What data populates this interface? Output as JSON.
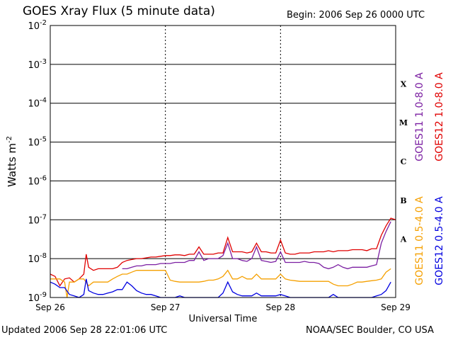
{
  "header": {
    "title": "GOES Xray Flux (5 minute data)",
    "begin": "Begin:  2006 Sep 26 0000 UTC"
  },
  "footer": {
    "updated": "Updated 2006 Sep 28 22:01:06 UTC",
    "credit": "NOAA/SEC Boulder, CO USA"
  },
  "chart_data": {
    "type": "line",
    "title": "GOES Xray Flux (5 minute data)",
    "xlabel": "Universal Time",
    "ylabel": "Watts m-2",
    "ylabel_base": "Watts m",
    "ylabel_exp": "-2",
    "yscale": "log",
    "ylim": [
      1e-09,
      0.01
    ],
    "xlim": [
      0,
      72
    ],
    "x_unit": "hours since 2006 Sep 26 0000 UTC",
    "x_ticks": [
      {
        "x": 0,
        "label": "Sep 26"
      },
      {
        "x": 24,
        "label": "Sep 27"
      },
      {
        "x": 48,
        "label": "Sep 28"
      },
      {
        "x": 72,
        "label": "Sep 29"
      }
    ],
    "y_ticks": [
      {
        "exp": -9,
        "label": "10",
        "sup": "-9"
      },
      {
        "exp": -8,
        "label": "10",
        "sup": "-8"
      },
      {
        "exp": -7,
        "label": "10",
        "sup": "-7"
      },
      {
        "exp": -6,
        "label": "10",
        "sup": "-6"
      },
      {
        "exp": -5,
        "label": "10",
        "sup": "-5"
      },
      {
        "exp": -4,
        "label": "10",
        "sup": "-4"
      },
      {
        "exp": -3,
        "label": "10",
        "sup": "-3"
      },
      {
        "exp": -2,
        "label": "10",
        "sup": "-2"
      }
    ],
    "flare_classes": [
      {
        "label": "A",
        "exp": -8
      },
      {
        "label": "B",
        "exp": -7
      },
      {
        "label": "C",
        "exp": -6
      },
      {
        "label": "M",
        "exp": -5
      },
      {
        "label": "X",
        "exp": -4
      }
    ],
    "grid": true,
    "series": [
      {
        "name": "GOES12 1.0-8.0 A",
        "color": "#e00000",
        "points": [
          [
            0,
            4e-09
          ],
          [
            1,
            3.5e-09
          ],
          [
            2,
            2e-09
          ],
          [
            3,
            3e-09
          ],
          [
            4,
            3.2e-09
          ],
          [
            5,
            2.5e-09
          ],
          [
            6,
            3e-09
          ],
          [
            7,
            4e-09
          ],
          [
            7.5,
            1.3e-08
          ],
          [
            8,
            6e-09
          ],
          [
            9,
            5e-09
          ],
          [
            10,
            5.5e-09
          ],
          [
            11,
            5.5e-09
          ],
          [
            12,
            5.5e-09
          ],
          [
            13,
            5.5e-09
          ],
          [
            14,
            6e-09
          ],
          [
            15,
            8e-09
          ],
          [
            16,
            9e-09
          ],
          [
            17,
            9.5e-09
          ],
          [
            18,
            1e-08
          ],
          [
            19,
            1e-08
          ],
          [
            20,
            1.05e-08
          ],
          [
            21,
            1.1e-08
          ],
          [
            22,
            1.1e-08
          ],
          [
            23,
            1.15e-08
          ],
          [
            24,
            1.2e-08
          ],
          [
            25,
            1.2e-08
          ],
          [
            26,
            1.25e-08
          ],
          [
            27,
            1.25e-08
          ],
          [
            28,
            1.2e-08
          ],
          [
            29,
            1.3e-08
          ],
          [
            30,
            1.3e-08
          ],
          [
            31,
            2e-08
          ],
          [
            32,
            1.3e-08
          ],
          [
            33,
            1.3e-08
          ],
          [
            34,
            1.3e-08
          ],
          [
            35,
            1.4e-08
          ],
          [
            36,
            1.4e-08
          ],
          [
            37,
            3.5e-08
          ],
          [
            38,
            1.5e-08
          ],
          [
            39,
            1.5e-08
          ],
          [
            40,
            1.5e-08
          ],
          [
            41,
            1.4e-08
          ],
          [
            42,
            1.5e-08
          ],
          [
            43,
            2.5e-08
          ],
          [
            44,
            1.5e-08
          ],
          [
            45,
            1.5e-08
          ],
          [
            46,
            1.4e-08
          ],
          [
            47,
            1.4e-08
          ],
          [
            48,
            3e-08
          ],
          [
            49,
            1.4e-08
          ],
          [
            50,
            1.3e-08
          ],
          [
            51,
            1.3e-08
          ],
          [
            52,
            1.4e-08
          ],
          [
            53,
            1.4e-08
          ],
          [
            54,
            1.4e-08
          ],
          [
            55,
            1.5e-08
          ],
          [
            56,
            1.5e-08
          ],
          [
            57,
            1.5e-08
          ],
          [
            58,
            1.6e-08
          ],
          [
            59,
            1.5e-08
          ],
          [
            60,
            1.6e-08
          ],
          [
            61,
            1.6e-08
          ],
          [
            62,
            1.6e-08
          ],
          [
            63,
            1.7e-08
          ],
          [
            64,
            1.7e-08
          ],
          [
            65,
            1.7e-08
          ],
          [
            66,
            1.6e-08
          ],
          [
            67,
            1.8e-08
          ],
          [
            68,
            1.8e-08
          ],
          [
            69,
            4e-08
          ],
          [
            70,
            7e-08
          ],
          [
            71,
            1.1e-07
          ],
          [
            72,
            1e-07
          ]
        ]
      },
      {
        "name": "GOES11 1.0-8.0 A",
        "color": "#7b1fa2",
        "points": [
          [
            15,
            5.5e-09
          ],
          [
            16,
            5.5e-09
          ],
          [
            17,
            6e-09
          ],
          [
            18,
            6.5e-09
          ],
          [
            19,
            6.5e-09
          ],
          [
            20,
            7e-09
          ],
          [
            21,
            7e-09
          ],
          [
            22,
            7e-09
          ],
          [
            23,
            7.5e-09
          ],
          [
            24,
            7.5e-09
          ],
          [
            25,
            7.5e-09
          ],
          [
            26,
            8e-09
          ],
          [
            27,
            8e-09
          ],
          [
            28,
            8e-09
          ],
          [
            29,
            9e-09
          ],
          [
            30,
            9e-09
          ],
          [
            31,
            1.5e-08
          ],
          [
            32,
            9e-09
          ],
          [
            33,
            1e-08
          ],
          [
            34,
            1e-08
          ],
          [
            35,
            1e-08
          ],
          [
            36,
            1.2e-08
          ],
          [
            37,
            2.5e-08
          ],
          [
            38,
            1e-08
          ],
          [
            39,
            1e-08
          ],
          [
            40,
            9e-09
          ],
          [
            41,
            8.5e-09
          ],
          [
            42,
            1e-08
          ],
          [
            43,
            2e-08
          ],
          [
            44,
            9e-09
          ],
          [
            45,
            8.5e-09
          ],
          [
            46,
            8e-09
          ],
          [
            47,
            8.5e-09
          ],
          [
            48,
            1.5e-08
          ],
          [
            49,
            8e-09
          ],
          [
            50,
            8e-09
          ],
          [
            51,
            8e-09
          ],
          [
            52,
            8e-09
          ],
          [
            53,
            8.5e-09
          ],
          [
            54,
            8e-09
          ],
          [
            55,
            8e-09
          ],
          [
            56,
            7.5e-09
          ],
          [
            57,
            6e-09
          ],
          [
            58,
            5.5e-09
          ],
          [
            59,
            6e-09
          ],
          [
            60,
            7e-09
          ],
          [
            61,
            6e-09
          ],
          [
            62,
            5.5e-09
          ],
          [
            63,
            6e-09
          ],
          [
            64,
            6e-09
          ],
          [
            65,
            6e-09
          ],
          [
            66,
            6e-09
          ],
          [
            67,
            6.5e-09
          ],
          [
            68,
            7e-09
          ],
          [
            69,
            2.5e-08
          ],
          [
            70,
            5e-08
          ],
          [
            71,
            9e-08
          ]
        ]
      },
      {
        "name": "GOES11 0.5-4.0 A",
        "color": "#f5a000",
        "points": [
          [
            0,
            3e-09
          ],
          [
            1,
            3e-09
          ],
          [
            2,
            3e-09
          ],
          [
            3,
            2.5e-09
          ],
          [
            3.5,
            1e-09
          ],
          [
            4,
            2.5e-09
          ],
          [
            5,
            2.5e-09
          ],
          [
            6,
            3e-09
          ],
          [
            7,
            3e-09
          ],
          [
            8,
            2e-09
          ],
          [
            9,
            2.5e-09
          ],
          [
            10,
            2.5e-09
          ],
          [
            11,
            2.5e-09
          ],
          [
            12,
            2.5e-09
          ],
          [
            13,
            3e-09
          ],
          [
            14,
            3.5e-09
          ],
          [
            15,
            4e-09
          ],
          [
            16,
            4e-09
          ],
          [
            17,
            4.5e-09
          ],
          [
            18,
            5e-09
          ],
          [
            19,
            5e-09
          ],
          [
            20,
            5e-09
          ],
          [
            21,
            5e-09
          ],
          [
            22,
            5e-09
          ],
          [
            23,
            5e-09
          ],
          [
            24,
            5e-09
          ],
          [
            25,
            2.8e-09
          ],
          [
            26,
            2.6e-09
          ],
          [
            27,
            2.5e-09
          ],
          [
            28,
            2.5e-09
          ],
          [
            29,
            2.5e-09
          ],
          [
            30,
            2.5e-09
          ],
          [
            31,
            2.5e-09
          ],
          [
            32,
            2.6e-09
          ],
          [
            33,
            2.8e-09
          ],
          [
            34,
            2.8e-09
          ],
          [
            35,
            3e-09
          ],
          [
            36,
            3.5e-09
          ],
          [
            37,
            5e-09
          ],
          [
            38,
            3e-09
          ],
          [
            39,
            3e-09
          ],
          [
            40,
            3.5e-09
          ],
          [
            41,
            3e-09
          ],
          [
            42,
            3e-09
          ],
          [
            43,
            4e-09
          ],
          [
            44,
            3e-09
          ],
          [
            45,
            3e-09
          ],
          [
            46,
            3e-09
          ],
          [
            47,
            3e-09
          ],
          [
            48,
            4e-09
          ],
          [
            49,
            3e-09
          ],
          [
            50,
            2.8e-09
          ],
          [
            51,
            2.7e-09
          ],
          [
            52,
            2.6e-09
          ],
          [
            53,
            2.6e-09
          ],
          [
            54,
            2.6e-09
          ],
          [
            55,
            2.6e-09
          ],
          [
            56,
            2.6e-09
          ],
          [
            57,
            2.6e-09
          ],
          [
            58,
            2.6e-09
          ],
          [
            59,
            2.2e-09
          ],
          [
            60,
            2e-09
          ],
          [
            61,
            2e-09
          ],
          [
            62,
            2e-09
          ],
          [
            63,
            2.2e-09
          ],
          [
            64,
            2.5e-09
          ],
          [
            65,
            2.5e-09
          ],
          [
            66,
            2.6e-09
          ],
          [
            67,
            2.7e-09
          ],
          [
            68,
            2.8e-09
          ],
          [
            69,
            3e-09
          ],
          [
            70,
            4.5e-09
          ],
          [
            71,
            5.5e-09
          ]
        ]
      },
      {
        "name": "GOES12 0.5-4.0 A",
        "color": "#0000e0",
        "points": [
          [
            0,
            2.5e-09
          ],
          [
            1,
            2.2e-09
          ],
          [
            2,
            1.8e-09
          ],
          [
            3,
            1.8e-09
          ],
          [
            4,
            1.2e-09
          ],
          [
            5,
            1.1e-09
          ],
          [
            6,
            1e-09
          ],
          [
            7,
            1.2e-09
          ],
          [
            7.5,
            3e-09
          ],
          [
            8,
            1.5e-09
          ],
          [
            9,
            1.3e-09
          ],
          [
            10,
            1.2e-09
          ],
          [
            11,
            1.2e-09
          ],
          [
            12,
            1.3e-09
          ],
          [
            13,
            1.4e-09
          ],
          [
            14,
            1.6e-09
          ],
          [
            15,
            1.6e-09
          ],
          [
            16,
            2.5e-09
          ],
          [
            17,
            2e-09
          ],
          [
            18,
            1.5e-09
          ],
          [
            19,
            1.3e-09
          ],
          [
            20,
            1.2e-09
          ],
          [
            21,
            1.2e-09
          ],
          [
            22,
            1.1e-09
          ],
          [
            23,
            1e-09
          ],
          [
            24,
            1e-09
          ],
          [
            25,
            1e-09
          ],
          [
            26,
            1e-09
          ],
          [
            27,
            1.1e-09
          ],
          [
            28,
            1e-09
          ],
          [
            29,
            1e-09
          ],
          [
            30,
            1e-09
          ],
          [
            31,
            1e-09
          ],
          [
            32,
            1e-09
          ],
          [
            33,
            1e-09
          ],
          [
            34,
            1e-09
          ],
          [
            35,
            1e-09
          ],
          [
            36,
            1.3e-09
          ],
          [
            37,
            2.5e-09
          ],
          [
            38,
            1.4e-09
          ],
          [
            39,
            1.2e-09
          ],
          [
            40,
            1.1e-09
          ],
          [
            41,
            1.1e-09
          ],
          [
            42,
            1.1e-09
          ],
          [
            43,
            1.3e-09
          ],
          [
            44,
            1.1e-09
          ],
          [
            45,
            1.1e-09
          ],
          [
            46,
            1.1e-09
          ],
          [
            47,
            1.1e-09
          ],
          [
            48,
            1.2e-09
          ],
          [
            49,
            1.1e-09
          ],
          [
            50,
            1e-09
          ],
          [
            51,
            1e-09
          ],
          [
            52,
            1e-09
          ],
          [
            53,
            1e-09
          ],
          [
            54,
            1e-09
          ],
          [
            55,
            1e-09
          ],
          [
            56,
            1e-09
          ],
          [
            57,
            1e-09
          ],
          [
            58,
            1e-09
          ],
          [
            59,
            1.2e-09
          ],
          [
            60,
            1e-09
          ],
          [
            61,
            1e-09
          ],
          [
            62,
            1e-09
          ],
          [
            63,
            1e-09
          ],
          [
            64,
            1e-09
          ],
          [
            65,
            1e-09
          ],
          [
            66,
            1e-09
          ],
          [
            67,
            1e-09
          ],
          [
            68,
            1.1e-09
          ],
          [
            69,
            1.2e-09
          ],
          [
            70,
            1.5e-09
          ],
          [
            71,
            2.5e-09
          ]
        ]
      }
    ]
  }
}
